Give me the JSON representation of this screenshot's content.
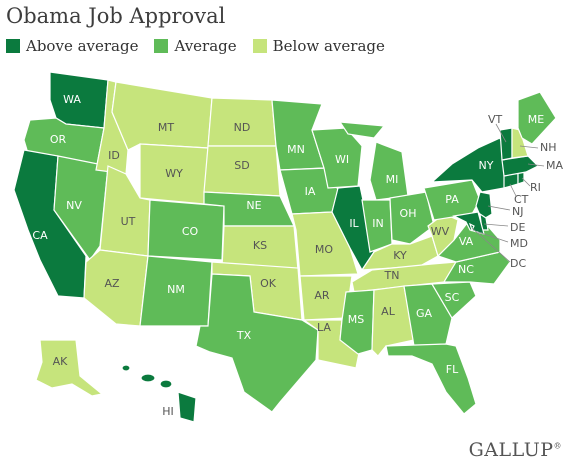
{
  "title": "Obama Job Approval",
  "legend": [
    {
      "label": "Above average",
      "color": "#0b7a3e"
    },
    {
      "label": "Average",
      "color": "#5fbb58"
    },
    {
      "label": "Below average",
      "color": "#c6e47c"
    }
  ],
  "colors": {
    "above": "#0b7a3e",
    "average": "#5fbb58",
    "below": "#c6e47c"
  },
  "states": {
    "WA": {
      "label": "WA",
      "category": "above"
    },
    "OR": {
      "label": "OR",
      "category": "average"
    },
    "CA": {
      "label": "CA",
      "category": "above"
    },
    "NV": {
      "label": "NV",
      "category": "average"
    },
    "ID": {
      "label": "ID",
      "category": "below"
    },
    "MT": {
      "label": "MT",
      "category": "below"
    },
    "WY": {
      "label": "WY",
      "category": "below"
    },
    "UT": {
      "label": "UT",
      "category": "below"
    },
    "AZ": {
      "label": "AZ",
      "category": "below"
    },
    "CO": {
      "label": "CO",
      "category": "average"
    },
    "NM": {
      "label": "NM",
      "category": "average"
    },
    "ND": {
      "label": "ND",
      "category": "below"
    },
    "SD": {
      "label": "SD",
      "category": "below"
    },
    "NE": {
      "label": "NE",
      "category": "average"
    },
    "KS": {
      "label": "KS",
      "category": "below"
    },
    "OK": {
      "label": "OK",
      "category": "below"
    },
    "TX": {
      "label": "TX",
      "category": "average"
    },
    "MN": {
      "label": "MN",
      "category": "average"
    },
    "IA": {
      "label": "IA",
      "category": "average"
    },
    "MO": {
      "label": "MO",
      "category": "below"
    },
    "AR": {
      "label": "AR",
      "category": "below"
    },
    "LA": {
      "label": "LA",
      "category": "below"
    },
    "WI": {
      "label": "WI",
      "category": "average"
    },
    "IL": {
      "label": "IL",
      "category": "above"
    },
    "MI": {
      "label": "MI",
      "category": "average"
    },
    "IN": {
      "label": "IN",
      "category": "average"
    },
    "OH": {
      "label": "OH",
      "category": "average"
    },
    "KY": {
      "label": "KY",
      "category": "below"
    },
    "TN": {
      "label": "TN",
      "category": "below"
    },
    "MS": {
      "label": "MS",
      "category": "average"
    },
    "AL": {
      "label": "AL",
      "category": "below"
    },
    "GA": {
      "label": "GA",
      "category": "average"
    },
    "FL": {
      "label": "FL",
      "category": "average"
    },
    "SC": {
      "label": "SC",
      "category": "average"
    },
    "NC": {
      "label": "NC",
      "category": "average"
    },
    "VA": {
      "label": "VA",
      "category": "average"
    },
    "WV": {
      "label": "WV",
      "category": "below"
    },
    "PA": {
      "label": "PA",
      "category": "average"
    },
    "NY": {
      "label": "NY",
      "category": "above"
    },
    "VT": {
      "label": "VT",
      "category": "above"
    },
    "NH": {
      "label": "NH",
      "category": "below"
    },
    "ME": {
      "label": "ME",
      "category": "average"
    },
    "MA": {
      "label": "MA",
      "category": "above"
    },
    "RI": {
      "label": "RI",
      "category": "above"
    },
    "CT": {
      "label": "CT",
      "category": "above"
    },
    "NJ": {
      "label": "NJ",
      "category": "above"
    },
    "DE": {
      "label": "DE",
      "category": "above"
    },
    "MD": {
      "label": "MD",
      "category": "above"
    },
    "DC": {
      "label": "DC",
      "category": "above"
    },
    "AK": {
      "label": "AK",
      "category": "below"
    },
    "HI": {
      "label": "HI",
      "category": "above"
    }
  },
  "logo": "GALLUP"
}
